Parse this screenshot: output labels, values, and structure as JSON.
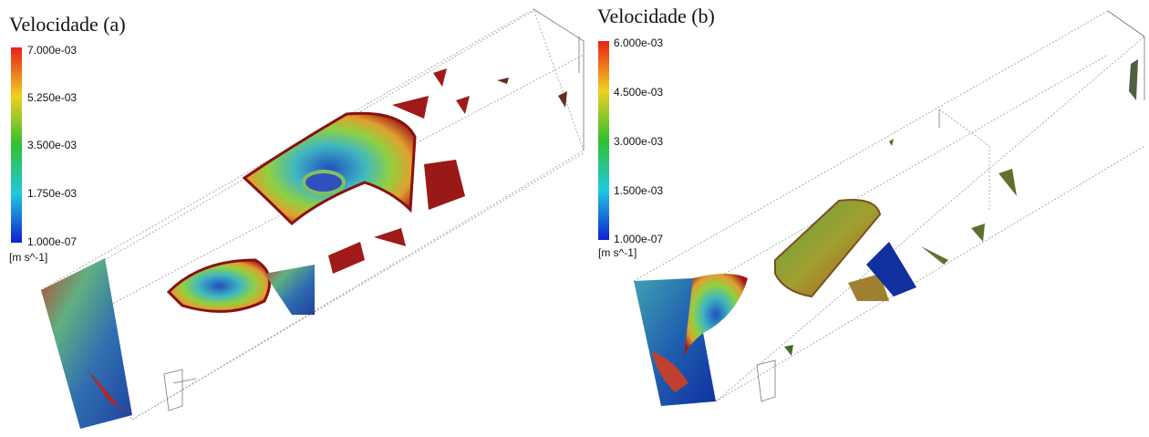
{
  "panels": [
    {
      "title": "Velocidade (a)",
      "colorbar_labels": [
        "7.000e-03",
        "5.250e-03",
        "3.500e-03",
        "1.750e-03",
        "1.000e-07"
      ],
      "unit": "[m s^-1]"
    },
    {
      "title": "Velocidade (b)",
      "colorbar_labels": [
        "6.000e-03",
        "4.500e-03",
        "3.000e-03",
        "1.500e-03",
        "1.000e-07"
      ],
      "unit": "[m s^-1]"
    }
  ]
}
